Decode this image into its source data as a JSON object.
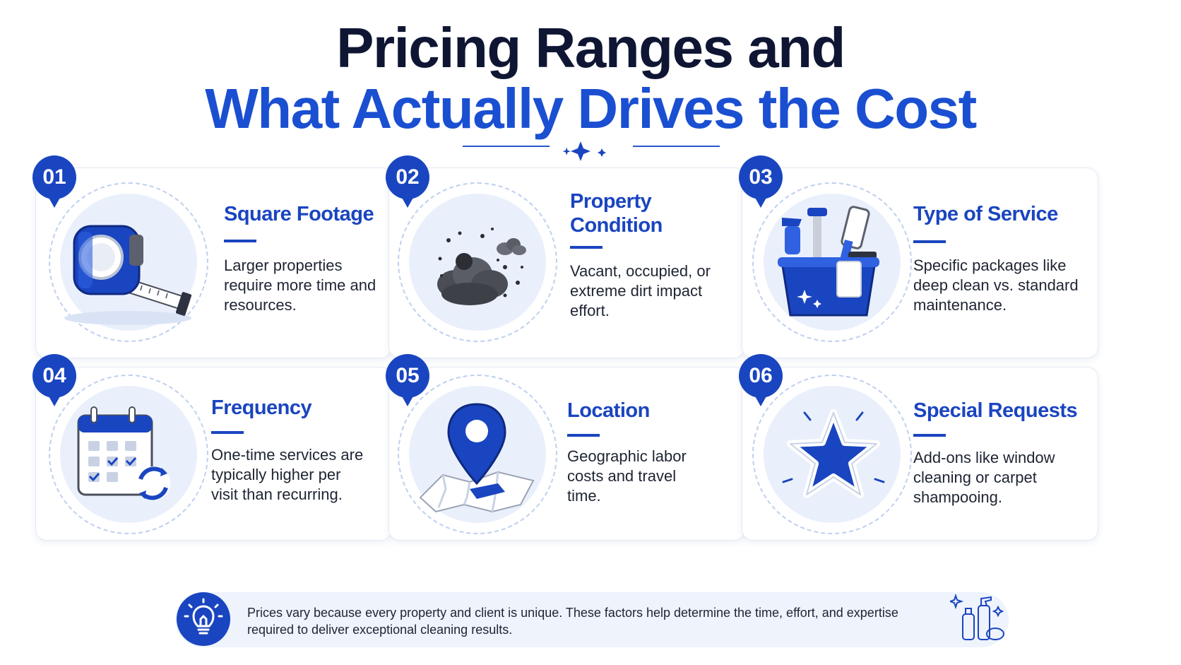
{
  "header": {
    "title_line1": "Pricing Ranges and",
    "title_line2": "What Actually Drives the Cost"
  },
  "colors": {
    "accent": "#1a45c0",
    "title_dark": "#0f1633",
    "halo_bg": "#eaf0fb"
  },
  "cards": [
    {
      "number": "01",
      "title": "Square Footage",
      "description": "Larger properties require more time and resources.",
      "icon": "tape-measure-icon"
    },
    {
      "number": "02",
      "title": "Property Condition",
      "description": "Vacant, occupied, or extreme dirt impact effort.",
      "icon": "dirt-cloud-icon"
    },
    {
      "number": "03",
      "title": "Type of Service",
      "description": "Specific packages like deep clean vs. standard maintenance.",
      "icon": "cleaning-bucket-icon"
    },
    {
      "number": "04",
      "title": "Frequency",
      "description": "One-time services are typically higher per visit than recurring.",
      "icon": "calendar-icon"
    },
    {
      "number": "05",
      "title": "Location",
      "description": "Geographic labor costs and travel time.",
      "icon": "map-pin-icon"
    },
    {
      "number": "06",
      "title": "Special Requests",
      "description": "Add-ons like window cleaning or carpet shampooing.",
      "icon": "star-icon"
    }
  ],
  "footer": {
    "text": "Prices vary because every property and client is unique. These factors help determine the time, effort, and expertise required to deliver exceptional cleaning results.",
    "icon": "lightbulb-icon",
    "decoration_icon": "cleaning-supplies-icon"
  }
}
